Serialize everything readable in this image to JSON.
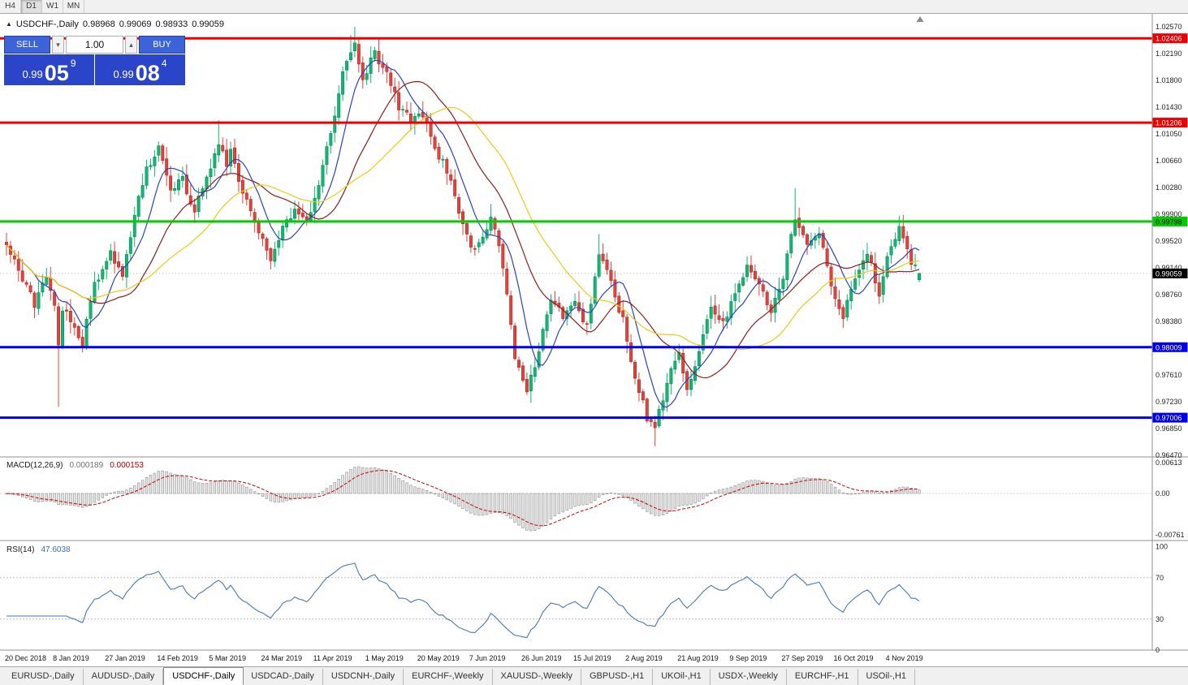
{
  "toolbar": {
    "timeframes": [
      "H4",
      "D1",
      "W1",
      "MN"
    ],
    "active": "D1"
  },
  "chart_header": {
    "collapse_icon": "▲",
    "title": "USDCHF-,Daily",
    "open": "0.98968",
    "high": "0.99069",
    "low": "0.98933",
    "close": "0.99059"
  },
  "trade_panel": {
    "sell_label": "SELL",
    "buy_label": "BUY",
    "volume": "1.00",
    "volume_down_icon": "▾",
    "volume_up_icon": "▴",
    "sell_price": {
      "base": "0.99",
      "big": "05",
      "sup": "9"
    },
    "buy_price": {
      "base": "0.99",
      "big": "08",
      "sup": "4"
    }
  },
  "chart_data": {
    "type": "candlestick",
    "symbol": "USDCHF-",
    "period": "Daily",
    "up_color": "#0fb873",
    "up_border": "#077a4a",
    "down_color": "#e5423b",
    "down_border": "#9c211c",
    "price_axis": {
      "max": 1.0257,
      "min": 0.9647,
      "labels": [
        "1.02570",
        "1.02190",
        "1.01800",
        "1.01430",
        "1.01050",
        "1.00660",
        "1.00280",
        "0.99900",
        "0.99520",
        "0.99140",
        "0.98760",
        "0.98380",
        "0.98000",
        "0.97610",
        "0.97230",
        "0.96850",
        "0.96470"
      ]
    },
    "time_axis": {
      "labels": [
        {
          "text": "20 Dec 2018",
          "i": 0
        },
        {
          "text": "8 Jan 2019",
          "i": 12
        },
        {
          "text": "27 Jan 2019",
          "i": 25
        },
        {
          "text": "14 Feb 2019",
          "i": 38
        },
        {
          "text": "5 Mar 2019",
          "i": 51
        },
        {
          "text": "24 Mar 2019",
          "i": 64
        },
        {
          "text": "11 Apr 2019",
          "i": 77
        },
        {
          "text": "1 May 2019",
          "i": 90
        },
        {
          "text": "20 May 2019",
          "i": 103
        },
        {
          "text": "7 Jun 2019",
          "i": 116
        },
        {
          "text": "26 Jun 2019",
          "i": 129
        },
        {
          "text": "15 Jul 2019",
          "i": 142
        },
        {
          "text": "2 Aug 2019",
          "i": 155
        },
        {
          "text": "21 Aug 2019",
          "i": 168
        },
        {
          "text": "9 Sep 2019",
          "i": 181
        },
        {
          "text": "27 Sep 2019",
          "i": 194
        },
        {
          "text": "16 Oct 2019",
          "i": 207
        },
        {
          "text": "4 Nov 2019",
          "i": 220
        }
      ]
    },
    "candle_count": 229,
    "price_path": [
      [
        0,
        0.9948
      ],
      [
        4,
        0.9898
      ],
      [
        7,
        0.9862
      ],
      [
        10,
        0.99
      ],
      [
        12,
        0.9855
      ],
      [
        13,
        0.98
      ],
      [
        14,
        0.9858
      ],
      [
        16,
        0.9835
      ],
      [
        19,
        0.9808
      ],
      [
        22,
        0.989
      ],
      [
        26,
        0.9932
      ],
      [
        29,
        0.9902
      ],
      [
        32,
        0.9988
      ],
      [
        35,
        1.0055
      ],
      [
        38,
        1.0088
      ],
      [
        41,
        1.0022
      ],
      [
        44,
        1.004
      ],
      [
        47,
        0.9995
      ],
      [
        50,
        1.004
      ],
      [
        53,
        1.0095
      ],
      [
        55,
        1.006
      ],
      [
        56,
        1.0085
      ],
      [
        58,
        1.004
      ],
      [
        60,
        1.0008
      ],
      [
        63,
        0.9968
      ],
      [
        66,
        0.9928
      ],
      [
        69,
        0.9972
      ],
      [
        72,
        0.9998
      ],
      [
        75,
        0.9982
      ],
      [
        78,
        1.003
      ],
      [
        81,
        1.0105
      ],
      [
        84,
        1.019
      ],
      [
        87,
        1.0235
      ],
      [
        89,
        1.0185
      ],
      [
        92,
        1.0218
      ],
      [
        95,
        1.0195
      ],
      [
        98,
        1.0145
      ],
      [
        101,
        1.0125
      ],
      [
        104,
        1.0132
      ],
      [
        107,
        1.0085
      ],
      [
        110,
        1.0052
      ],
      [
        113,
        0.9992
      ],
      [
        116,
        0.994
      ],
      [
        119,
        0.9958
      ],
      [
        121,
        0.9985
      ],
      [
        124,
        0.992
      ],
      [
        127,
        0.979
      ],
      [
        130,
        0.9742
      ],
      [
        133,
        0.9795
      ],
      [
        136,
        0.9872
      ],
      [
        139,
        0.9845
      ],
      [
        142,
        0.9868
      ],
      [
        145,
        0.9828
      ],
      [
        148,
        0.9935
      ],
      [
        151,
        0.989
      ],
      [
        154,
        0.9838
      ],
      [
        157,
        0.976
      ],
      [
        160,
        0.97
      ],
      [
        162,
        0.9682
      ],
      [
        165,
        0.9755
      ],
      [
        168,
        0.9788
      ],
      [
        170,
        0.9738
      ],
      [
        173,
        0.98
      ],
      [
        176,
        0.9858
      ],
      [
        179,
        0.9832
      ],
      [
        182,
        0.9878
      ],
      [
        185,
        0.9918
      ],
      [
        188,
        0.9888
      ],
      [
        191,
        0.9852
      ],
      [
        194,
        0.9902
      ],
      [
        197,
        0.9982
      ],
      [
        200,
        0.995
      ],
      [
        203,
        0.9968
      ],
      [
        206,
        0.989
      ],
      [
        209,
        0.9845
      ],
      [
        212,
        0.99
      ],
      [
        215,
        0.9935
      ],
      [
        218,
        0.9878
      ],
      [
        221,
        0.9948
      ],
      [
        223,
        0.9972
      ],
      [
        226,
        0.9922
      ],
      [
        228,
        0.9906
      ]
    ],
    "wick_overrides": [
      {
        "i": 13,
        "l": 0.9716
      },
      {
        "i": 53,
        "h": 1.0124
      },
      {
        "i": 86,
        "h": 1.0245
      },
      {
        "i": 87,
        "h": 1.0257
      },
      {
        "i": 121,
        "h": 1.0005
      },
      {
        "i": 148,
        "h": 0.9962
      },
      {
        "i": 162,
        "l": 0.966
      },
      {
        "i": 197,
        "h": 1.0027
      },
      {
        "i": 223,
        "h": 0.9988
      }
    ],
    "last_candle": {
      "o": 0.98968,
      "h": 0.99069,
      "l": 0.98933,
      "c": 0.99059
    },
    "levels": [
      {
        "price": 1.02406,
        "label": "1.02406",
        "color": "#ee0000",
        "text_color": "#ffffff"
      },
      {
        "price": 1.01206,
        "label": "1.01206",
        "color": "#ee0000",
        "text_color": "#ffffff"
      },
      {
        "price": 0.99798,
        "label": "0.99798",
        "color": "#00cc00",
        "text_color": "#000000"
      },
      {
        "price": 0.98009,
        "label": "0.98009",
        "color": "#0000ee",
        "text_color": "#ffffff"
      },
      {
        "price": 0.97006,
        "label": "0.97006",
        "color": "#0000ee",
        "text_color": "#ffffff"
      }
    ],
    "bid_line": {
      "price": 0.99059,
      "label": "0.99059"
    },
    "moving_averages": [
      {
        "period": 8,
        "color": "#2b43c0"
      },
      {
        "period": 21,
        "color": "#8b1f1f"
      },
      {
        "period": 34,
        "color": "#edc915"
      }
    ],
    "indicators": {
      "macd": {
        "label": "MACD(12,26,9)",
        "value_main": "0.000189",
        "value_signal": "0.000153",
        "axis_labels": [
          "0.00613",
          "0.00",
          "-0.00761"
        ],
        "signal_color": "#cc0000",
        "hist_fill": "#e6e6e6",
        "hist_border": "#8f8f8f"
      },
      "rsi": {
        "label": "RSI(14)",
        "value": "47.6038",
        "line_color": "#4577b5",
        "levels": [
          70,
          30
        ],
        "axis_labels": [
          "100",
          "70",
          "30",
          "0"
        ]
      }
    },
    "shift_marker_icon": "▲"
  },
  "tabs": {
    "items": [
      "EURUSD-,Daily",
      "AUDUSD-,Daily",
      "USDCHF-,Daily",
      "USDCAD-,Daily",
      "USDCNH-,Daily",
      "EURCHF-,Weekly",
      "XAUUSD-,Weekly",
      "GBPUSD-,H1",
      "UKOil-,H1",
      "USDX-,Weekly",
      "EURCHF-,H1",
      "USOil-,H1"
    ],
    "active": "USDCHF-,Daily"
  }
}
